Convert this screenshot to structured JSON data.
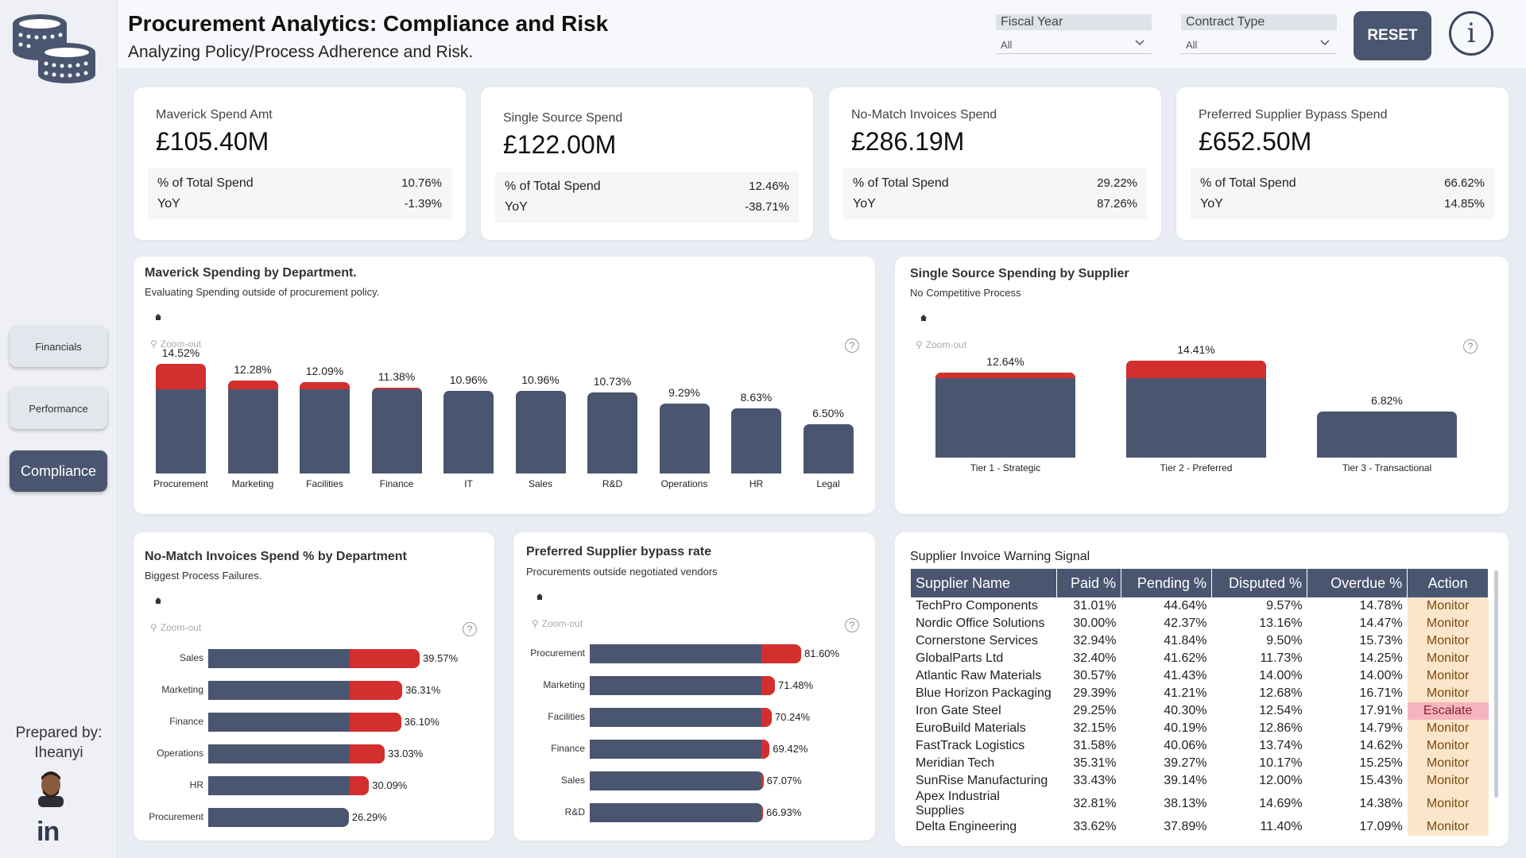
{
  "header": {
    "title": "Procurement Analytics: Compliance and Risk",
    "subtitle": "Analyzing Policy/Process Adherence and Risk.",
    "fiscal_year_label": "Fiscal Year",
    "fiscal_year_value": "All",
    "contract_type_label": "Contract Type",
    "contract_type_value": "All",
    "reset_label": "RESET",
    "info_label": "i"
  },
  "sidebar": {
    "nav": [
      "Financials",
      "Performance",
      "Compliance"
    ],
    "active": "Compliance",
    "prepared_by": "Prepared by:",
    "author": "Iheanyi",
    "linkedin": "in"
  },
  "kpis": [
    {
      "label": "Maverick Spend Amt",
      "value": "£105.40M",
      "pct_label": "% of Total Spend",
      "pct": "10.76%",
      "yoy_label": "YoY",
      "yoy": "-1.39%"
    },
    {
      "label": "Single Source Spend",
      "value": "£122.00M",
      "pct_label": "% of Total Spend",
      "pct": "12.46%",
      "yoy_label": "YoY",
      "yoy": "-38.71%"
    },
    {
      "label": "No-Match Invoices Spend",
      "value": "£286.19M",
      "pct_label": "% of Total Spend",
      "pct": "29.22%",
      "yoy_label": "YoY",
      "yoy": "87.26%"
    },
    {
      "label": "Preferred Supplier Bypass Spend",
      "value": "£652.50M",
      "pct_label": "% of Total Spend",
      "pct": "66.62%",
      "yoy_label": "YoY",
      "yoy": "14.85%"
    }
  ],
  "zoom_label": "Zoom-out",
  "help_label": "?",
  "colors": {
    "accent": "#4a5670",
    "risk": "#d32f2f",
    "monitor_bg": "#fbe6cc",
    "escalate_bg": "#f5b5bf"
  },
  "chart_data": [
    {
      "type": "bar",
      "title": "Maverick Spending by Department.",
      "subtitle": "Evaluating Spending outside of procurement policy.",
      "categories": [
        "Procurement",
        "Marketing",
        "Facilities",
        "Finance",
        "IT",
        "Sales",
        "R&D",
        "Operations",
        "HR",
        "Legal"
      ],
      "values": [
        14.52,
        12.28,
        12.09,
        11.38,
        10.96,
        10.96,
        10.73,
        9.29,
        8.63,
        6.5
      ],
      "labels": [
        "14.52%",
        "12.28%",
        "12.09%",
        "11.38%",
        "10.96%",
        "10.96%",
        "10.73%",
        "9.29%",
        "8.63%",
        "6.50%"
      ]
    },
    {
      "type": "bar",
      "title": "Single Source Spending by Supplier",
      "subtitle": "No Competitive Process",
      "categories": [
        "Tier 1 - Strategic",
        "Tier 2 - Preferred",
        "Tier 3 - Transactional"
      ],
      "values": [
        12.64,
        14.41,
        6.82
      ],
      "labels": [
        "12.64%",
        "14.41%",
        "6.82%"
      ]
    },
    {
      "type": "bar",
      "orientation": "horizontal",
      "title": "No-Match Invoices Spend % by Department",
      "subtitle": "Biggest Process Failures.",
      "categories": [
        "Sales",
        "Marketing",
        "Finance",
        "Operations",
        "HR",
        "Procurement"
      ],
      "values": [
        39.57,
        36.31,
        36.1,
        33.03,
        30.09,
        26.29
      ],
      "labels": [
        "39.57%",
        "36.31%",
        "36.10%",
        "33.03%",
        "30.09%",
        "26.29%"
      ]
    },
    {
      "type": "bar",
      "orientation": "horizontal",
      "title": "Preferred Supplier bypass rate",
      "subtitle": "Procurements outside negotiated vendors",
      "categories": [
        "Procurement",
        "Marketing",
        "Facilities",
        "Finance",
        "Sales",
        "R&D"
      ],
      "values": [
        81.6,
        71.48,
        70.24,
        69.42,
        67.07,
        66.93
      ],
      "labels": [
        "81.60%",
        "71.48%",
        "70.24%",
        "69.42%",
        "67.07%",
        "66.93%"
      ]
    }
  ],
  "warning_table": {
    "title": "Supplier Invoice Warning Signal",
    "columns": [
      "Supplier Name",
      "Paid %",
      "Pending %",
      "Disputed %",
      "Overdue %",
      "Action"
    ],
    "rows": [
      [
        "TechPro Components",
        "31.01%",
        "44.64%",
        "9.57%",
        "14.78%",
        "Monitor"
      ],
      [
        "Nordic Office Solutions",
        "30.00%",
        "42.37%",
        "13.16%",
        "14.47%",
        "Monitor"
      ],
      [
        "Cornerstone Services",
        "32.94%",
        "41.84%",
        "9.50%",
        "15.73%",
        "Monitor"
      ],
      [
        "GlobalParts Ltd",
        "32.40%",
        "41.62%",
        "11.73%",
        "14.25%",
        "Monitor"
      ],
      [
        "Atlantic Raw Materials",
        "30.57%",
        "41.43%",
        "14.00%",
        "14.00%",
        "Monitor"
      ],
      [
        "Blue Horizon Packaging",
        "29.39%",
        "41.21%",
        "12.68%",
        "16.71%",
        "Monitor"
      ],
      [
        "Iron Gate Steel",
        "29.25%",
        "40.30%",
        "12.54%",
        "17.91%",
        "Escalate"
      ],
      [
        "EuroBuild Materials",
        "32.15%",
        "40.19%",
        "12.86%",
        "14.79%",
        "Monitor"
      ],
      [
        "FastTrack Logistics",
        "31.58%",
        "40.06%",
        "13.74%",
        "14.62%",
        "Monitor"
      ],
      [
        "Meridian Tech",
        "35.31%",
        "39.27%",
        "10.17%",
        "15.25%",
        "Monitor"
      ],
      [
        "SunRise Manufacturing",
        "33.43%",
        "39.14%",
        "12.00%",
        "15.43%",
        "Monitor"
      ],
      [
        "Apex Industrial Supplies",
        "32.81%",
        "38.13%",
        "14.69%",
        "14.38%",
        "Monitor"
      ],
      [
        "Delta Engineering",
        "33.62%",
        "37.89%",
        "11.40%",
        "17.09%",
        "Monitor"
      ]
    ]
  }
}
